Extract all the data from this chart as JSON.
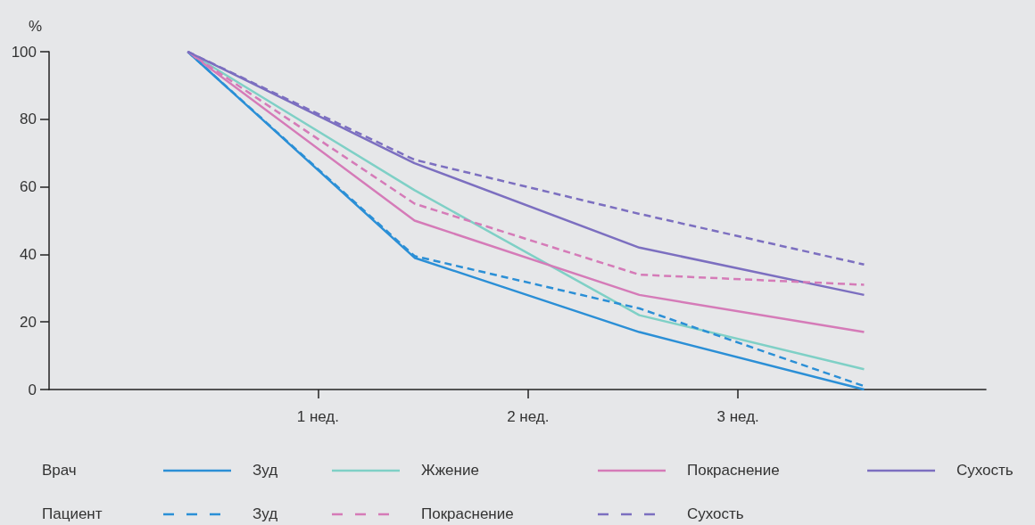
{
  "chart_data": {
    "type": "line",
    "ylabel": "%",
    "x": [
      0.38,
      1.46,
      2.53,
      3.6
    ],
    "xlim": [
      -0.28,
      4.18
    ],
    "xticks": [
      {
        "value": 1,
        "label": "1 нед."
      },
      {
        "value": 2,
        "label": "2 нед."
      },
      {
        "value": 3,
        "label": "3 нед."
      }
    ],
    "ylim": [
      0,
      100
    ],
    "yticks": [
      0,
      20,
      40,
      60,
      80,
      100
    ],
    "grid": false,
    "marker": "none",
    "legend": "bottom",
    "annotations": [
      "Врач",
      "Пациент"
    ],
    "series": [
      {
        "name": "Зуд",
        "color": "#2b8fd6",
        "line_style": "solid",
        "values": [
          100,
          39,
          17,
          0
        ]
      },
      {
        "name": "Жжение",
        "color": "#7fd0c6",
        "line_style": "solid",
        "values": [
          100,
          59,
          22,
          6
        ]
      },
      {
        "name": "Покраснение",
        "color": "#d57bb8",
        "line_style": "solid",
        "values": [
          100,
          50,
          28,
          17
        ]
      },
      {
        "name": "Сухость",
        "color": "#7c6fc0",
        "line_style": "solid",
        "values": [
          100,
          67,
          42,
          28
        ]
      },
      {
        "name": "Зуд",
        "color": "#2b8fd6",
        "line_style": "dashed",
        "values": [
          100,
          39.5,
          24,
          1
        ]
      },
      {
        "name": "Покраснение",
        "color": "#d57bb8",
        "line_style": "dashed",
        "values": [
          100,
          55,
          34,
          31
        ]
      },
      {
        "name": "Сухость",
        "color": "#7c6fc0",
        "line_style": "dashed",
        "values": [
          100,
          68,
          52,
          37
        ]
      }
    ]
  }
}
